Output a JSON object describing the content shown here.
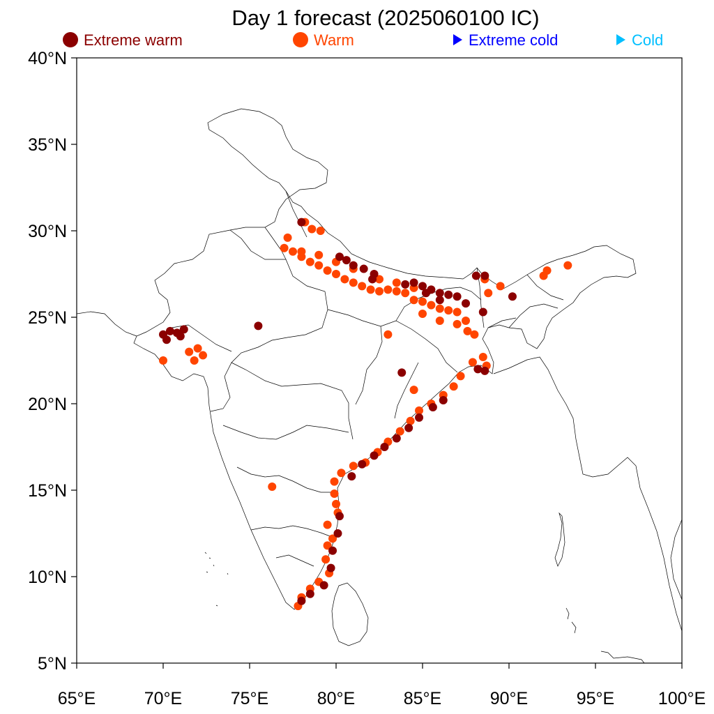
{
  "title": "Day 1 forecast (2025060100 IC)",
  "legend": [
    {
      "label": "Extreme warm",
      "symbol": "circle",
      "color": "#8b0000"
    },
    {
      "label": "Warm",
      "symbol": "circle",
      "color": "#ff4500"
    },
    {
      "label": "Extreme cold",
      "symbol": "triangle",
      "color": "#0000ff"
    },
    {
      "label": "Cold",
      "symbol": "triangle",
      "color": "#00bfff"
    }
  ],
  "axes": {
    "lon_ticks": [
      "65°E",
      "70°E",
      "75°E",
      "80°E",
      "85°E",
      "90°E",
      "95°E",
      "100°E"
    ],
    "lat_ticks": [
      "40°N",
      "35°N",
      "30°N",
      "25°N",
      "20°N",
      "15°N",
      "10°N",
      "5°N"
    ]
  },
  "chart_data": {
    "type": "scatter",
    "title": "Day 1 forecast (2025060100 IC)",
    "xlim": [
      65,
      100
    ],
    "ylim": [
      5,
      40
    ],
    "x_ticks": [
      65,
      70,
      75,
      80,
      85,
      90,
      95,
      100
    ],
    "y_ticks": [
      5,
      10,
      15,
      20,
      25,
      30,
      35,
      40
    ],
    "legend_position": "top",
    "series": [
      {
        "name": "Extreme warm",
        "color": "#8b0000",
        "points": [
          [
            70.0,
            24.0
          ],
          [
            70.4,
            24.2
          ],
          [
            70.8,
            24.1
          ],
          [
            71.2,
            24.3
          ],
          [
            71.0,
            23.9
          ],
          [
            70.2,
            23.7
          ],
          [
            75.5,
            24.5
          ],
          [
            78.0,
            30.5
          ],
          [
            80.2,
            28.5
          ],
          [
            80.6,
            28.3
          ],
          [
            81.0,
            28.0
          ],
          [
            81.6,
            27.8
          ],
          [
            82.2,
            27.5
          ],
          [
            82.1,
            27.2
          ],
          [
            84.0,
            26.9
          ],
          [
            84.5,
            27.0
          ],
          [
            85.0,
            26.8
          ],
          [
            85.5,
            26.6
          ],
          [
            86.0,
            26.4
          ],
          [
            86.5,
            26.3
          ],
          [
            87.0,
            26.2
          ],
          [
            85.2,
            26.4
          ],
          [
            86.0,
            26.0
          ],
          [
            87.5,
            25.8
          ],
          [
            88.5,
            25.3
          ],
          [
            88.1,
            27.4
          ],
          [
            88.6,
            27.4
          ],
          [
            90.2,
            26.2
          ],
          [
            83.8,
            21.8
          ],
          [
            88.2,
            22.0
          ],
          [
            88.6,
            21.9
          ],
          [
            86.2,
            20.2
          ],
          [
            85.6,
            19.8
          ],
          [
            84.8,
            19.2
          ],
          [
            84.2,
            18.6
          ],
          [
            83.5,
            18.0
          ],
          [
            82.8,
            17.5
          ],
          [
            82.2,
            17.0
          ],
          [
            81.5,
            16.5
          ],
          [
            80.9,
            15.8
          ],
          [
            80.2,
            13.5
          ],
          [
            80.1,
            12.5
          ],
          [
            79.8,
            11.5
          ],
          [
            79.7,
            10.5
          ],
          [
            79.3,
            9.5
          ],
          [
            78.5,
            9.0
          ],
          [
            78.0,
            8.6
          ]
        ]
      },
      {
        "name": "Warm",
        "color": "#ff4500",
        "points": [
          [
            77.0,
            29.0
          ],
          [
            77.5,
            28.8
          ],
          [
            78.0,
            28.5
          ],
          [
            78.5,
            28.2
          ],
          [
            79.0,
            28.0
          ],
          [
            79.5,
            27.7
          ],
          [
            80.0,
            27.5
          ],
          [
            80.5,
            27.2
          ],
          [
            81.0,
            27.0
          ],
          [
            81.5,
            26.8
          ],
          [
            82.0,
            26.6
          ],
          [
            82.5,
            26.5
          ],
          [
            83.0,
            26.6
          ],
          [
            83.5,
            26.5
          ],
          [
            84.0,
            26.4
          ],
          [
            84.5,
            26.0
          ],
          [
            85.0,
            25.9
          ],
          [
            85.5,
            25.7
          ],
          [
            86.0,
            25.5
          ],
          [
            86.5,
            25.4
          ],
          [
            87.0,
            25.3
          ],
          [
            87.5,
            24.8
          ],
          [
            87.6,
            24.2
          ],
          [
            88.0,
            24.0
          ],
          [
            77.2,
            29.6
          ],
          [
            78.2,
            30.5
          ],
          [
            78.6,
            30.1
          ],
          [
            79.1,
            30.0
          ],
          [
            78.0,
            28.8
          ],
          [
            79.0,
            28.6
          ],
          [
            80.0,
            28.2
          ],
          [
            81.0,
            27.8
          ],
          [
            82.5,
            27.2
          ],
          [
            83.5,
            27.0
          ],
          [
            84.5,
            26.7
          ],
          [
            85.0,
            25.2
          ],
          [
            86.0,
            24.8
          ],
          [
            87.0,
            24.6
          ],
          [
            88.6,
            27.2
          ],
          [
            89.5,
            26.8
          ],
          [
            92.2,
            27.7
          ],
          [
            92.0,
            27.4
          ],
          [
            93.4,
            28.0
          ],
          [
            88.8,
            26.4
          ],
          [
            72.0,
            23.2
          ],
          [
            72.3,
            22.8
          ],
          [
            71.5,
            23.0
          ],
          [
            71.8,
            22.5
          ],
          [
            70.0,
            22.5
          ],
          [
            83.0,
            24.0
          ],
          [
            84.5,
            20.8
          ],
          [
            76.3,
            15.2
          ],
          [
            88.5,
            22.7
          ],
          [
            88.7,
            22.2
          ],
          [
            87.9,
            22.4
          ],
          [
            87.2,
            21.6
          ],
          [
            86.8,
            21.0
          ],
          [
            86.2,
            20.5
          ],
          [
            85.5,
            20.0
          ],
          [
            84.8,
            19.6
          ],
          [
            84.3,
            19.0
          ],
          [
            83.7,
            18.4
          ],
          [
            83.0,
            17.8
          ],
          [
            82.4,
            17.2
          ],
          [
            81.7,
            16.6
          ],
          [
            81.0,
            16.4
          ],
          [
            80.3,
            16.0
          ],
          [
            79.9,
            15.5
          ],
          [
            79.9,
            14.8
          ],
          [
            80.0,
            14.2
          ],
          [
            80.1,
            13.7
          ],
          [
            79.5,
            13.0
          ],
          [
            79.8,
            12.2
          ],
          [
            79.5,
            11.8
          ],
          [
            79.4,
            11.0
          ],
          [
            79.6,
            10.2
          ],
          [
            79.0,
            9.7
          ],
          [
            78.5,
            9.3
          ],
          [
            78.0,
            8.8
          ],
          [
            77.8,
            8.3
          ]
        ]
      },
      {
        "name": "Extreme cold",
        "color": "#0000ff",
        "points": []
      },
      {
        "name": "Cold",
        "color": "#00bfff",
        "points": []
      }
    ]
  }
}
